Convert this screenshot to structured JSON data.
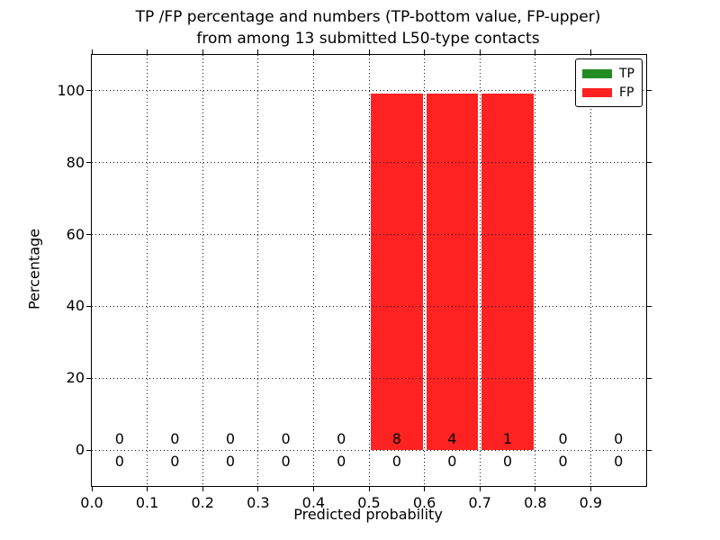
{
  "chart_data": {
    "type": "bar",
    "stacked": true,
    "title_lines": [
      "TP /FP percentage and numbers (TP-bottom value, FP-upper)",
      "from among 13 submitted L50-type contacts"
    ],
    "xlabel": "Predicted probability",
    "ylabel": "Percentage",
    "xlim": [
      0.0,
      1.0
    ],
    "ylim": [
      -10,
      110
    ],
    "xticks": [
      "0.0",
      "0.1",
      "0.2",
      "0.3",
      "0.4",
      "0.5",
      "0.6",
      "0.7",
      "0.8",
      "0.9"
    ],
    "yticks": [
      0,
      20,
      40,
      60,
      80,
      100
    ],
    "grid": "dotted",
    "bin_edges": [
      0.0,
      0.1,
      0.2,
      0.3,
      0.4,
      0.5,
      0.6,
      0.7,
      0.8,
      0.9,
      1.0
    ],
    "series": [
      {
        "name": "TP",
        "color": "#228b22",
        "percent": [
          0,
          0,
          0,
          0,
          0,
          0,
          0,
          0,
          0,
          0
        ],
        "counts": [
          0,
          0,
          0,
          0,
          0,
          0,
          0,
          0,
          0,
          0
        ]
      },
      {
        "name": "FP",
        "color": "#ff2222",
        "percent": [
          0,
          0,
          0,
          0,
          0,
          99.3,
          99.3,
          99.3,
          0,
          0
        ],
        "counts": [
          0,
          0,
          0,
          0,
          0,
          8,
          4,
          1,
          0,
          0
        ]
      }
    ],
    "legend": {
      "position": "upper right",
      "entries": [
        "TP",
        "FP"
      ]
    }
  }
}
